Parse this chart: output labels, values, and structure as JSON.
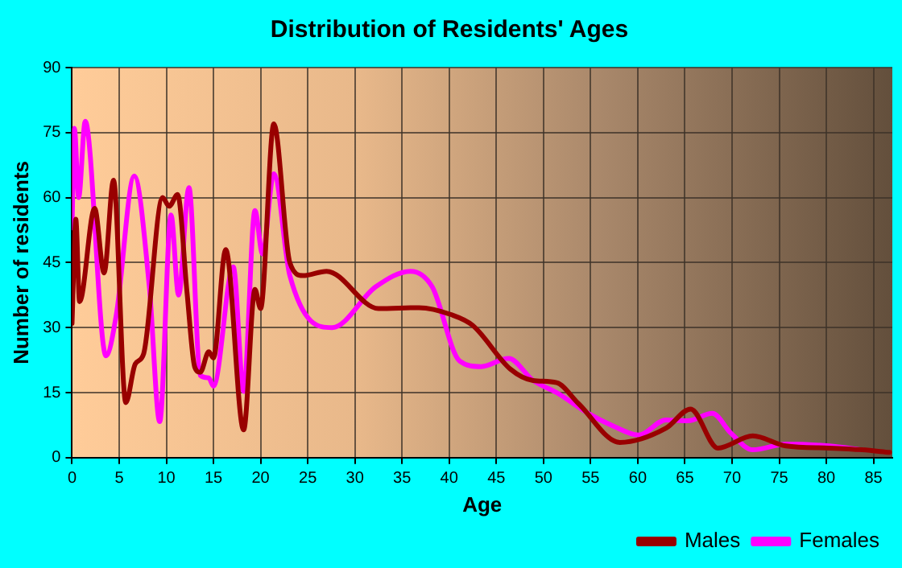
{
  "chart_data": {
    "type": "line",
    "title": "Distribution of Residents' Ages",
    "xlabel": "Age",
    "ylabel": "Number of residents",
    "xlim": [
      0,
      87
    ],
    "xticks": [
      0,
      5,
      10,
      15,
      20,
      25,
      30,
      35,
      40,
      45,
      50,
      55,
      60,
      65,
      70,
      75,
      80,
      85
    ],
    "ylim": [
      0,
      90
    ],
    "yticks": [
      0,
      15,
      30,
      45,
      60,
      75,
      90
    ],
    "grid": true,
    "legend": "bottom right",
    "marker": "none",
    "line_style": "solid",
    "series": [
      {
        "name": "Males",
        "color": "#990000",
        "x": [
          0,
          0.4,
          0.8,
          2.4,
          3.4,
          4.4,
          5.7,
          6.7,
          7.6,
          9.6,
          10.3,
          11.2,
          12.2,
          13,
          13.6,
          14.5,
          15,
          16.3,
          18.2,
          19.4,
          20,
          21.4,
          23.1,
          24.5,
          27,
          32.5,
          36.8,
          40.2,
          42.5,
          46.5,
          48.9,
          51.4,
          53.7,
          58.1,
          63,
          65.6,
          68.5,
          72.2,
          75.7,
          80.3,
          83.8,
          86.7
        ],
        "values": [
          31,
          55,
          36,
          57.5,
          42.6,
          64,
          12.7,
          21.6,
          24,
          60,
          58,
          60.7,
          38,
          21,
          19.7,
          24.4,
          23,
          48,
          6.4,
          38.8,
          34.4,
          77,
          45,
          42,
          43,
          34.4,
          34.6,
          33,
          30.5,
          20.4,
          17.8,
          17.3,
          12.5,
          3.5,
          6.8,
          11.2,
          2.2,
          5,
          2.7,
          2.2,
          1.8,
          1.2
        ]
      },
      {
        "name": "Females",
        "color": "#ff00ff",
        "x": [
          0,
          0.25,
          0.7,
          1.4,
          3.6,
          4.7,
          6.6,
          8.2,
          9.3,
          10.5,
          11.3,
          12.4,
          13.6,
          14.5,
          15,
          17.1,
          18.2,
          19.4,
          20.2,
          21.4,
          23.1,
          27.6,
          32.2,
          35.9,
          38.2,
          41.1,
          43.4,
          46.3,
          48.9,
          51.4,
          54.9,
          57.2,
          60.1,
          63,
          65.3,
          67.9,
          69.9,
          72.2,
          75.7,
          80.3,
          83.8
        ],
        "values": [
          53,
          76,
          60,
          77.6,
          23.5,
          33,
          65,
          39.4,
          8.3,
          56,
          37.5,
          62.3,
          19,
          18.4,
          16.5,
          44,
          15.3,
          57,
          47,
          65.5,
          42,
          30,
          39.4,
          43,
          39.4,
          22.3,
          21,
          22.9,
          17.8,
          15,
          10,
          7.5,
          5.2,
          8.7,
          8.5,
          10.2,
          5.6,
          1.8,
          3.1,
          2.7,
          1.8
        ]
      }
    ]
  }
}
